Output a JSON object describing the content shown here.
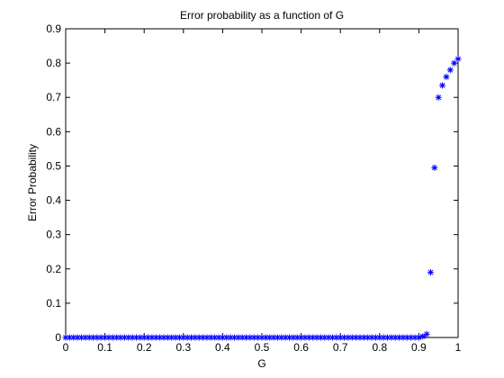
{
  "chart_data": {
    "type": "scatter",
    "title": "Error probability as a function of G",
    "xlabel": "G",
    "ylabel": "Error Probability",
    "xlim": [
      0,
      1
    ],
    "ylim": [
      0,
      0.9
    ],
    "xticks": [
      "0",
      "0.1",
      "0.2",
      "0.3",
      "0.4",
      "0.5",
      "0.6",
      "0.7",
      "0.8",
      "0.9",
      "1"
    ],
    "yticks": [
      "0",
      "0.1",
      "0.2",
      "0.3",
      "0.4",
      "0.5",
      "0.6",
      "0.7",
      "0.8",
      "0.9"
    ],
    "grid": false,
    "marker": "asterisk",
    "series": [
      {
        "color": "#0000ff",
        "x": [
          0,
          0.01,
          0.02,
          0.03,
          0.04,
          0.05,
          0.06,
          0.07,
          0.08,
          0.09,
          0.1,
          0.11,
          0.12,
          0.13,
          0.14,
          0.15,
          0.16,
          0.17,
          0.18,
          0.19,
          0.2,
          0.21,
          0.22,
          0.23,
          0.24,
          0.25,
          0.26,
          0.27,
          0.28,
          0.29,
          0.3,
          0.31,
          0.32,
          0.33,
          0.34,
          0.35,
          0.36,
          0.37,
          0.38,
          0.39,
          0.4,
          0.41,
          0.42,
          0.43,
          0.44,
          0.45,
          0.46,
          0.47,
          0.48,
          0.49,
          0.5,
          0.51,
          0.52,
          0.53,
          0.54,
          0.55,
          0.56,
          0.57,
          0.58,
          0.59,
          0.6,
          0.61,
          0.62,
          0.63,
          0.64,
          0.65,
          0.66,
          0.67,
          0.68,
          0.69,
          0.7,
          0.71,
          0.72,
          0.73,
          0.74,
          0.75,
          0.76,
          0.77,
          0.78,
          0.79,
          0.8,
          0.81,
          0.82,
          0.83,
          0.84,
          0.85,
          0.86,
          0.87,
          0.88,
          0.89,
          0.9,
          0.91,
          0.92,
          0.93,
          0.94,
          0.95,
          0.96,
          0.97,
          0.98,
          0.99,
          1.0
        ],
        "y": [
          0,
          0,
          0,
          0,
          0,
          0,
          0,
          0,
          0,
          0,
          0,
          0,
          0,
          0,
          0,
          0,
          0,
          0,
          0,
          0,
          0,
          0,
          0,
          0,
          0,
          0,
          0,
          0,
          0,
          0,
          0,
          0,
          0,
          0,
          0,
          0,
          0,
          0,
          0,
          0,
          0,
          0,
          0,
          0,
          0,
          0,
          0,
          0,
          0,
          0,
          0,
          0,
          0,
          0,
          0,
          0,
          0,
          0,
          0,
          0,
          0,
          0,
          0,
          0,
          0,
          0,
          0,
          0,
          0,
          0,
          0,
          0,
          0,
          0,
          0,
          0,
          0,
          0,
          0,
          0,
          0,
          0,
          0,
          0,
          0,
          0,
          0,
          0,
          0,
          0,
          0,
          0.003,
          0.01,
          0.19,
          0.495,
          0.7,
          0.735,
          0.76,
          0.78,
          0.8,
          0.812
        ]
      }
    ]
  }
}
